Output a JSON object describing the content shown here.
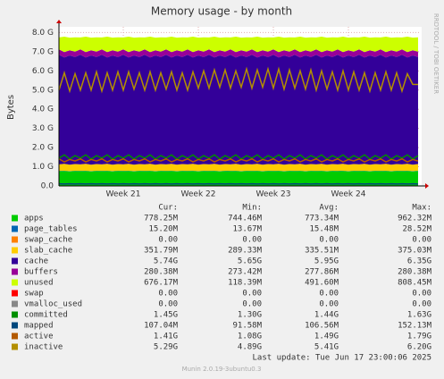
{
  "chart_data": {
    "type": "area",
    "title": "Memory usage - by month",
    "y_label": "Bytes",
    "side_text": "RRDTOOL / TOBI OETIKER",
    "last_update": "Last update:  Tue Jun 17 23:00:06 2025",
    "footer": "Munin 2.0.19-3ubuntu0.3",
    "stat_headers": [
      "Cur:",
      "Min:",
      "Avg:",
      "Max:"
    ],
    "grid": true,
    "ylim": [
      0,
      8.3
    ],
    "yticks": [
      {
        "value": 0,
        "label": "0.0"
      },
      {
        "value": 1,
        "label": "1.0 G"
      },
      {
        "value": 2,
        "label": "2.0 G"
      },
      {
        "value": 3,
        "label": "3.0 G"
      },
      {
        "value": 4,
        "label": "4.0 G"
      },
      {
        "value": 5,
        "label": "5.0 G"
      },
      {
        "value": 6,
        "label": "6.0 G"
      },
      {
        "value": 7,
        "label": "7.0 G"
      },
      {
        "value": 8,
        "label": "8.0 G"
      }
    ],
    "categories": [
      null,
      null,
      null,
      null,
      null,
      null,
      null,
      null,
      null,
      null,
      null,
      null,
      "Week 21",
      null,
      null,
      null,
      null,
      null,
      null,
      null,
      null,
      null,
      null,
      null,
      null,
      null,
      "Week 22",
      null,
      null,
      null,
      null,
      null,
      null,
      null,
      null,
      null,
      null,
      null,
      null,
      null,
      "Week 23",
      null,
      null,
      null,
      null,
      null,
      null,
      null,
      null,
      null,
      null,
      null,
      null,
      null,
      "Week 24",
      null,
      null,
      null,
      null,
      null,
      null,
      null,
      null,
      null,
      null,
      null,
      null,
      null
    ],
    "series": [
      {
        "name": "apps",
        "color": "#00cc00",
        "draw": "area",
        "stats": [
          "778.25M",
          "744.46M",
          "773.34M",
          "962.32M"
        ],
        "values": [
          0.77,
          0.78,
          0.76,
          0.78,
          0.77,
          0.78,
          0.76,
          0.78,
          0.77,
          0.78,
          0.76,
          0.78,
          0.77,
          0.78,
          0.76,
          0.78,
          0.77,
          0.78,
          0.76,
          0.78,
          0.77,
          0.78,
          0.76,
          0.78,
          0.77,
          0.78,
          0.76,
          0.78,
          0.77,
          0.78,
          0.76,
          0.78,
          0.77,
          0.78,
          0.76,
          0.78,
          0.77,
          0.78,
          0.76,
          0.78,
          0.77,
          0.78,
          0.76,
          0.78,
          0.77,
          0.78,
          0.76,
          0.78,
          0.77,
          0.78,
          0.76,
          0.78,
          0.77,
          0.78,
          0.76,
          0.78,
          0.77,
          0.78,
          0.76,
          0.78,
          0.77,
          0.78,
          0.76,
          0.78,
          0.77,
          0.78,
          0.76,
          0.78
        ]
      },
      {
        "name": "page_tables",
        "color": "#0066b3",
        "draw": "area",
        "stats": [
          "15.20M",
          "13.67M",
          "15.48M",
          "28.52M"
        ],
        "values": [
          0.015,
          0.015,
          0.015,
          0.015,
          0.015,
          0.015,
          0.015,
          0.015,
          0.015,
          0.015,
          0.015,
          0.015,
          0.015,
          0.015,
          0.015,
          0.015,
          0.015,
          0.015,
          0.015,
          0.015,
          0.015,
          0.015,
          0.015,
          0.015,
          0.015,
          0.015,
          0.015,
          0.015,
          0.015,
          0.015,
          0.015,
          0.015,
          0.015,
          0.015,
          0.015,
          0.015,
          0.015,
          0.015,
          0.015,
          0.015,
          0.015,
          0.015,
          0.015,
          0.015,
          0.015,
          0.015,
          0.015,
          0.015,
          0.015,
          0.015,
          0.015,
          0.015,
          0.015,
          0.015,
          0.015,
          0.015,
          0.015,
          0.015,
          0.015,
          0.015,
          0.015,
          0.015,
          0.015,
          0.015,
          0.015,
          0.015,
          0.015,
          0.015
        ]
      },
      {
        "name": "swap_cache",
        "color": "#ff8000",
        "draw": "area",
        "stats": [
          "0.00",
          "0.00",
          "0.00",
          "0.00"
        ],
        "values": [
          0,
          0,
          0,
          0,
          0,
          0,
          0,
          0,
          0,
          0,
          0,
          0,
          0,
          0,
          0,
          0,
          0,
          0,
          0,
          0,
          0,
          0,
          0,
          0,
          0,
          0,
          0,
          0,
          0,
          0,
          0,
          0,
          0,
          0,
          0,
          0,
          0,
          0,
          0,
          0,
          0,
          0,
          0,
          0,
          0,
          0,
          0,
          0,
          0,
          0,
          0,
          0,
          0,
          0,
          0,
          0,
          0,
          0,
          0,
          0,
          0,
          0,
          0,
          0,
          0,
          0,
          0,
          0
        ]
      },
      {
        "name": "slab_cache",
        "color": "#ffcc00",
        "draw": "area",
        "stats": [
          "351.79M",
          "289.33M",
          "335.51M",
          "375.03M"
        ],
        "values": [
          0.34,
          0.36,
          0.33,
          0.35,
          0.34,
          0.36,
          0.33,
          0.35,
          0.34,
          0.36,
          0.33,
          0.35,
          0.34,
          0.36,
          0.33,
          0.35,
          0.34,
          0.36,
          0.33,
          0.35,
          0.34,
          0.36,
          0.33,
          0.35,
          0.34,
          0.36,
          0.33,
          0.35,
          0.34,
          0.36,
          0.33,
          0.35,
          0.34,
          0.36,
          0.33,
          0.35,
          0.34,
          0.36,
          0.33,
          0.35,
          0.34,
          0.36,
          0.33,
          0.35,
          0.34,
          0.36,
          0.33,
          0.35,
          0.34,
          0.36,
          0.33,
          0.35,
          0.34,
          0.36,
          0.33,
          0.35,
          0.34,
          0.36,
          0.33,
          0.35,
          0.34,
          0.36,
          0.33,
          0.35,
          0.34,
          0.36,
          0.33,
          0.35
        ]
      },
      {
        "name": "cache",
        "color": "#330099",
        "draw": "area",
        "stats": [
          "5.74G",
          "5.65G",
          "5.95G",
          "6.35G"
        ],
        "values": [
          5.72,
          5.55,
          5.7,
          5.58,
          5.72,
          5.55,
          5.7,
          5.58,
          5.72,
          5.55,
          5.7,
          5.58,
          5.72,
          5.55,
          5.7,
          5.58,
          5.72,
          5.55,
          5.7,
          5.58,
          5.72,
          5.55,
          5.7,
          5.58,
          5.72,
          5.55,
          5.7,
          5.58,
          5.72,
          5.55,
          5.7,
          5.58,
          5.72,
          5.55,
          5.7,
          5.58,
          5.72,
          5.55,
          5.7,
          5.58,
          5.72,
          5.55,
          5.7,
          5.58,
          5.72,
          5.55,
          5.7,
          5.58,
          5.72,
          5.55,
          5.7,
          5.58,
          5.72,
          5.55,
          5.7,
          5.58,
          5.72,
          5.55,
          5.7,
          5.58,
          5.72,
          5.55,
          5.7,
          5.58,
          5.72,
          5.55,
          5.7,
          5.58
        ]
      },
      {
        "name": "buffers",
        "color": "#990099",
        "draw": "area",
        "stats": [
          "280.38M",
          "273.42M",
          "277.86M",
          "280.38M"
        ],
        "values": [
          0.28,
          0.28,
          0.27,
          0.28,
          0.28,
          0.28,
          0.27,
          0.28,
          0.28,
          0.28,
          0.27,
          0.28,
          0.28,
          0.28,
          0.27,
          0.28,
          0.28,
          0.28,
          0.27,
          0.28,
          0.28,
          0.28,
          0.27,
          0.28,
          0.28,
          0.28,
          0.27,
          0.28,
          0.28,
          0.28,
          0.27,
          0.28,
          0.28,
          0.28,
          0.27,
          0.28,
          0.28,
          0.28,
          0.27,
          0.28,
          0.28,
          0.28,
          0.27,
          0.28,
          0.28,
          0.28,
          0.27,
          0.28,
          0.28,
          0.28,
          0.27,
          0.28,
          0.28,
          0.28,
          0.27,
          0.28,
          0.28,
          0.28,
          0.27,
          0.28,
          0.28,
          0.28,
          0.27,
          0.28,
          0.28,
          0.28,
          0.27,
          0.28
        ]
      },
      {
        "name": "unused",
        "color": "#ccff00",
        "draw": "area",
        "stats": [
          "676.17M",
          "118.39M",
          "491.60M",
          "808.45M"
        ],
        "values": [
          0.62,
          0.8,
          0.66,
          0.75,
          0.62,
          0.8,
          0.66,
          0.75,
          0.62,
          0.8,
          0.66,
          0.75,
          0.62,
          0.8,
          0.66,
          0.75,
          0.62,
          0.8,
          0.66,
          0.75,
          0.62,
          0.8,
          0.66,
          0.75,
          0.62,
          0.8,
          0.66,
          0.75,
          0.62,
          0.8,
          0.66,
          0.75,
          0.62,
          0.8,
          0.66,
          0.75,
          0.62,
          0.8,
          0.66,
          0.75,
          0.62,
          0.8,
          0.66,
          0.75,
          0.62,
          0.8,
          0.66,
          0.75,
          0.62,
          0.8,
          0.66,
          0.75,
          0.62,
          0.8,
          0.66,
          0.75,
          0.62,
          0.8,
          0.66,
          0.75,
          0.62,
          0.8,
          0.66,
          0.75,
          0.62,
          0.8,
          0.66,
          0.75
        ]
      },
      {
        "name": "swap",
        "color": "#ff0000",
        "draw": "area",
        "stats": [
          "0.00",
          "0.00",
          "0.00",
          "0.00"
        ],
        "values": [
          0,
          0,
          0,
          0,
          0,
          0,
          0,
          0,
          0,
          0,
          0,
          0,
          0,
          0,
          0,
          0,
          0,
          0,
          0,
          0,
          0,
          0,
          0,
          0,
          0,
          0,
          0,
          0,
          0,
          0,
          0,
          0,
          0,
          0,
          0,
          0,
          0,
          0,
          0,
          0,
          0,
          0,
          0,
          0,
          0,
          0,
          0,
          0,
          0,
          0,
          0,
          0,
          0,
          0,
          0,
          0,
          0,
          0,
          0,
          0,
          0,
          0,
          0,
          0,
          0,
          0,
          0,
          0
        ]
      },
      {
        "name": "vmalloc_used",
        "color": "#888888",
        "draw": "area",
        "stats": [
          "0.00",
          "0.00",
          "0.00",
          "0.00"
        ],
        "values": [
          0,
          0,
          0,
          0,
          0,
          0,
          0,
          0,
          0,
          0,
          0,
          0,
          0,
          0,
          0,
          0,
          0,
          0,
          0,
          0,
          0,
          0,
          0,
          0,
          0,
          0,
          0,
          0,
          0,
          0,
          0,
          0,
          0,
          0,
          0,
          0,
          0,
          0,
          0,
          0,
          0,
          0,
          0,
          0,
          0,
          0,
          0,
          0,
          0,
          0,
          0,
          0,
          0,
          0,
          0,
          0,
          0,
          0,
          0,
          0,
          0,
          0,
          0,
          0,
          0,
          0,
          0,
          0
        ]
      },
      {
        "name": "committed",
        "color": "#008f00",
        "draw": "line",
        "stats": [
          "1.45G",
          "1.30G",
          "1.44G",
          "1.63G"
        ],
        "values": [
          1.45,
          1.62,
          1.4,
          1.58,
          1.45,
          1.62,
          1.4,
          1.58,
          1.45,
          1.62,
          1.4,
          1.58,
          1.45,
          1.62,
          1.4,
          1.58,
          1.45,
          1.62,
          1.4,
          1.58,
          1.45,
          1.62,
          1.4,
          1.58,
          1.45,
          1.62,
          1.4,
          1.58,
          1.45,
          1.62,
          1.4,
          1.58,
          1.45,
          1.62,
          1.4,
          1.58,
          1.45,
          1.62,
          1.4,
          1.58,
          1.45,
          1.62,
          1.4,
          1.58,
          1.45,
          1.62,
          1.4,
          1.58,
          1.45,
          1.62,
          1.4,
          1.58,
          1.45,
          1.62,
          1.4,
          1.58,
          1.45,
          1.62,
          1.4,
          1.58,
          1.45,
          1.62,
          1.4,
          1.58,
          1.45,
          1.62,
          1.4,
          1.58
        ]
      },
      {
        "name": "mapped",
        "color": "#00487d",
        "draw": "line",
        "stats": [
          "107.04M",
          "91.58M",
          "106.56M",
          "152.13M"
        ],
        "values": [
          0.11,
          0.1,
          0.11,
          0.1,
          0.11,
          0.1,
          0.11,
          0.1,
          0.11,
          0.1,
          0.11,
          0.1,
          0.11,
          0.1,
          0.11,
          0.1,
          0.11,
          0.1,
          0.11,
          0.1,
          0.11,
          0.1,
          0.11,
          0.1,
          0.11,
          0.1,
          0.11,
          0.1,
          0.11,
          0.1,
          0.11,
          0.1,
          0.11,
          0.1,
          0.11,
          0.1,
          0.11,
          0.1,
          0.11,
          0.1,
          0.11,
          0.1,
          0.11,
          0.1,
          0.11,
          0.1,
          0.11,
          0.1,
          0.11,
          0.1,
          0.11,
          0.1,
          0.11,
          0.1,
          0.11,
          0.1,
          0.11,
          0.1,
          0.11,
          0.1,
          0.11,
          0.1,
          0.11,
          0.1,
          0.11,
          0.1,
          0.11,
          0.1
        ]
      },
      {
        "name": "active",
        "color": "#b35a00",
        "draw": "line",
        "stats": [
          "1.41G",
          "1.08G",
          "1.49G",
          "1.79G"
        ],
        "values": [
          1.41,
          1.25,
          1.38,
          1.3,
          1.41,
          1.25,
          1.38,
          1.3,
          1.41,
          1.25,
          1.38,
          1.3,
          1.41,
          1.25,
          1.38,
          1.3,
          1.41,
          1.25,
          1.38,
          1.3,
          1.41,
          1.25,
          1.38,
          1.3,
          1.41,
          1.25,
          1.38,
          1.3,
          1.41,
          1.25,
          1.38,
          1.3,
          1.41,
          1.25,
          1.38,
          1.3,
          1.41,
          1.25,
          1.38,
          1.3,
          1.41,
          1.25,
          1.38,
          1.3,
          1.41,
          1.25,
          1.38,
          1.3,
          1.41,
          1.25,
          1.38,
          1.3,
          1.41,
          1.25,
          1.38,
          1.3,
          1.41,
          1.25,
          1.38,
          1.3,
          1.41,
          1.25,
          1.38,
          1.3,
          1.41,
          1.25,
          1.38,
          1.3
        ]
      },
      {
        "name": "inactive",
        "color": "#b38f00",
        "draw": "line",
        "stats": [
          "5.29G",
          "4.89G",
          "5.41G",
          "6.20G"
        ],
        "values": [
          5.0,
          5.9,
          4.95,
          5.85,
          5.0,
          5.9,
          5.0,
          5.95,
          4.95,
          5.9,
          5.0,
          5.95,
          5.0,
          5.95,
          5.05,
          5.9,
          5.0,
          5.95,
          5.0,
          5.9,
          5.05,
          5.95,
          5.0,
          5.9,
          5.0,
          5.95,
          5.1,
          6.0,
          5.1,
          6.05,
          5.15,
          6.05,
          5.1,
          6.0,
          5.15,
          6.1,
          5.1,
          6.05,
          5.15,
          6.1,
          5.1,
          6.1,
          5.05,
          6.05,
          5.1,
          6.0,
          5.05,
          6.05,
          5.0,
          6.0,
          5.05,
          5.95,
          5.0,
          6.0,
          5.0,
          5.95,
          5.0,
          5.9,
          4.95,
          5.9,
          5.0,
          5.95,
          5.0,
          5.9,
          4.95,
          5.85,
          5.3,
          5.29
        ]
      }
    ]
  }
}
